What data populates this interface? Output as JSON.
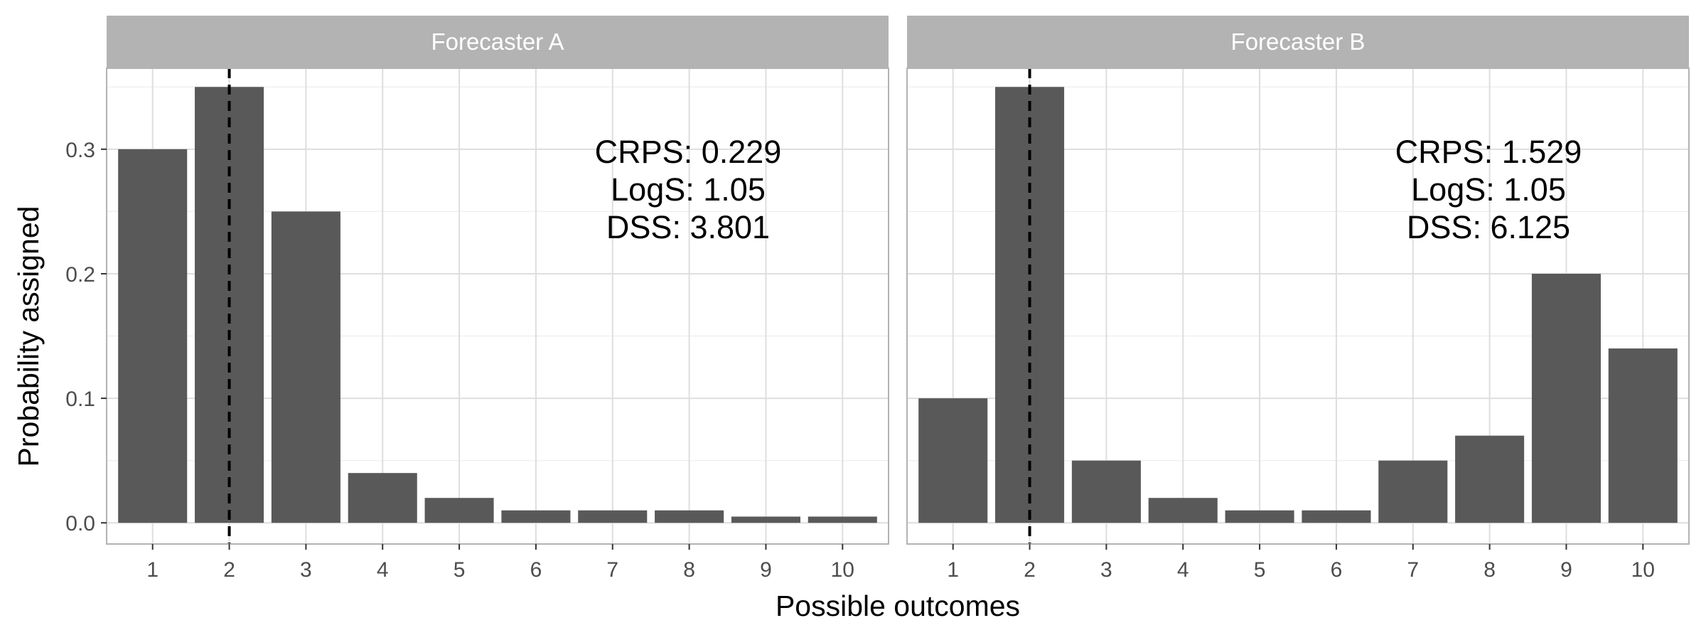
{
  "chart_data": {
    "type": "bar",
    "xlabel": "Possible outcomes",
    "ylabel": "Probability assigned",
    "categories": [
      "1",
      "2",
      "3",
      "4",
      "5",
      "6",
      "7",
      "8",
      "9",
      "10"
    ],
    "ylim": [
      -0.017,
      0.365
    ],
    "yticks": [
      "0.0",
      "0.1",
      "0.2",
      "0.3"
    ],
    "ytick_values": [
      0.0,
      0.1,
      0.2,
      0.3
    ],
    "observed_outcome": 2,
    "grid": true,
    "facets": [
      {
        "name": "Forecaster A",
        "values": [
          0.3,
          0.35,
          0.25,
          0.04,
          0.02,
          0.01,
          0.01,
          0.01,
          0.005,
          0.005
        ],
        "annotation": [
          "CRPS:  0.229",
          "LogS:  1.05",
          "DSS:  3.801"
        ]
      },
      {
        "name": "Forecaster B",
        "values": [
          0.1,
          0.35,
          0.05,
          0.02,
          0.01,
          0.01,
          0.05,
          0.07,
          0.2,
          0.14
        ],
        "annotation": [
          "CRPS:  1.529",
          "LogS:  1.05",
          "DSS:  6.125"
        ]
      }
    ],
    "colors": {
      "bar": "#595959",
      "strip": "#b3b3b3",
      "grid_major": "#dedede",
      "grid_minor": "#eeeeee",
      "panel_border": "#b3b3b3",
      "reference_line": "#000000"
    }
  }
}
